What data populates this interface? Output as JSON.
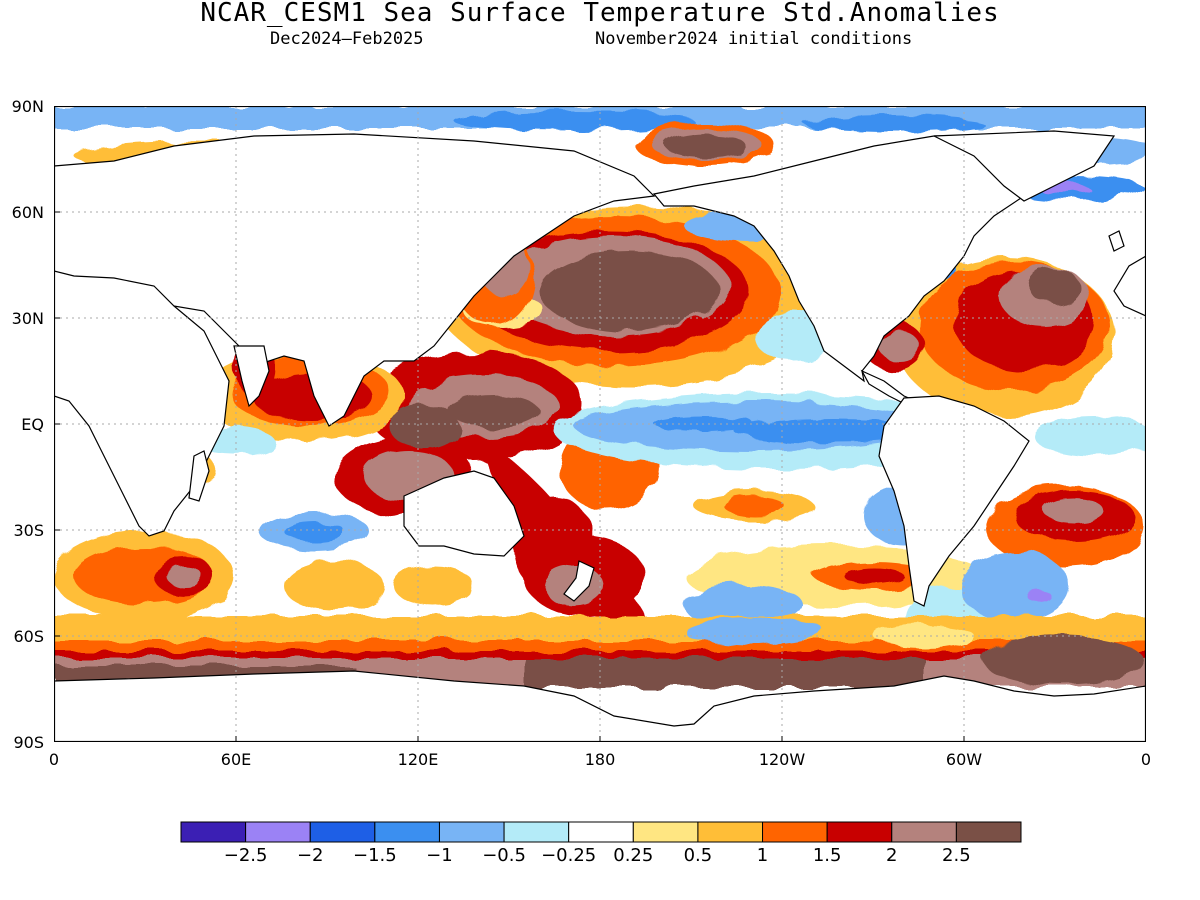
{
  "header": {
    "title": "NCAR_CESM1 Sea Surface Temperature Std.Anomalies",
    "period": "Dec2024–Feb2025",
    "init": "November2024 initial conditions"
  },
  "axes": {
    "lat_labels": [
      "90N",
      "60N",
      "30N",
      "EQ",
      "30S",
      "60S",
      "90S"
    ],
    "lon_labels": [
      "0",
      "60E",
      "120E",
      "180",
      "120W",
      "60W",
      "0"
    ]
  },
  "legend": {
    "colors": [
      "#3b1fb4",
      "#9b82f5",
      "#1e5fe6",
      "#3b8ff0",
      "#78b4f5",
      "#b4ebf8",
      "#ffffff",
      "#ffe682",
      "#ffbe37",
      "#ff6400",
      "#c80000",
      "#b4827d",
      "#7a5046"
    ],
    "labels": [
      "−2.5",
      "−2",
      "−1.5",
      "−1",
      "−0.5",
      "−0.25",
      "0.25",
      "0.5",
      "1",
      "1.5",
      "2",
      "2.5"
    ]
  },
  "map_regions": {
    "land_color": "#ffffff",
    "coast_color": "#000000",
    "grid_color": "#aaaaaa"
  }
}
